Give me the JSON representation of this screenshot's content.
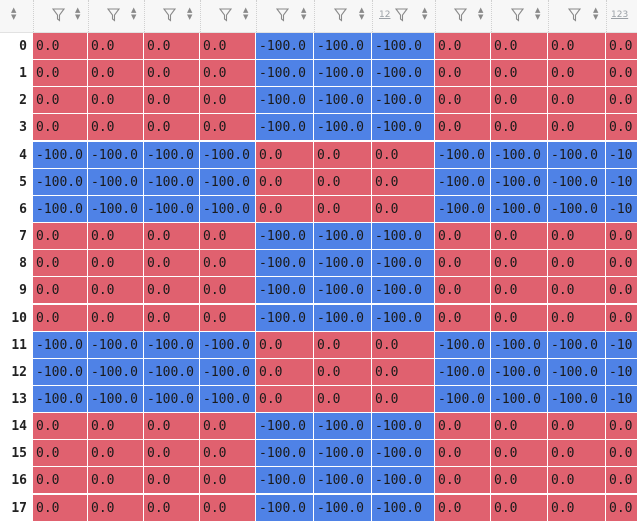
{
  "colors": {
    "positive": "#e0616f",
    "negative": "#4f82e6",
    "header_bg": "#f7f7f7"
  },
  "header": {
    "columns": [
      {
        "type_label": "",
        "filter_icon": "filter-icon",
        "sort_icon": "sort-icon"
      },
      {
        "type_label": "",
        "filter_icon": "filter-icon",
        "sort_icon": "sort-icon"
      },
      {
        "type_label": "",
        "filter_icon": "filter-icon",
        "sort_icon": "sort-icon"
      },
      {
        "type_label": "",
        "filter_icon": "filter-icon",
        "sort_icon": "sort-icon"
      },
      {
        "type_label": "",
        "filter_icon": "filter-icon",
        "sort_icon": "sort-icon"
      },
      {
        "type_label": "",
        "filter_icon": "filter-icon",
        "sort_icon": "sort-icon"
      },
      {
        "type_label": "12",
        "filter_icon": "filter-icon",
        "sort_icon": "sort-icon"
      },
      {
        "type_label": "",
        "filter_icon": "filter-icon",
        "sort_icon": "sort-icon"
      },
      {
        "type_label": "",
        "filter_icon": "filter-icon",
        "sort_icon": "sort-icon"
      },
      {
        "type_label": "",
        "filter_icon": "filter-icon",
        "sort_icon": "sort-icon"
      },
      {
        "type_label": "123",
        "filter_icon": "",
        "sort_icon": ""
      }
    ]
  },
  "table": {
    "row_labels": [
      "0",
      "1",
      "2",
      "3",
      "4",
      "5",
      "6",
      "7",
      "8",
      "9",
      "10",
      "11",
      "12",
      "13",
      "14",
      "15",
      "16",
      "17"
    ],
    "rows": [
      [
        "0.0",
        "0.0",
        "0.0",
        "0.0",
        "-100.0",
        "-100.0",
        "-100.0",
        "0.0",
        "0.0",
        "0.0",
        "0.0"
      ],
      [
        "0.0",
        "0.0",
        "0.0",
        "0.0",
        "-100.0",
        "-100.0",
        "-100.0",
        "0.0",
        "0.0",
        "0.0",
        "0.0"
      ],
      [
        "0.0",
        "0.0",
        "0.0",
        "0.0",
        "-100.0",
        "-100.0",
        "-100.0",
        "0.0",
        "0.0",
        "0.0",
        "0.0"
      ],
      [
        "0.0",
        "0.0",
        "0.0",
        "0.0",
        "-100.0",
        "-100.0",
        "-100.0",
        "0.0",
        "0.0",
        "0.0",
        "0.0"
      ],
      [
        "-100.0",
        "-100.0",
        "-100.0",
        "-100.0",
        "0.0",
        "0.0",
        "0.0",
        "-100.0",
        "-100.0",
        "-100.0",
        "-10"
      ],
      [
        "-100.0",
        "-100.0",
        "-100.0",
        "-100.0",
        "0.0",
        "0.0",
        "0.0",
        "-100.0",
        "-100.0",
        "-100.0",
        "-10"
      ],
      [
        "-100.0",
        "-100.0",
        "-100.0",
        "-100.0",
        "0.0",
        "0.0",
        "0.0",
        "-100.0",
        "-100.0",
        "-100.0",
        "-10"
      ],
      [
        "0.0",
        "0.0",
        "0.0",
        "0.0",
        "-100.0",
        "-100.0",
        "-100.0",
        "0.0",
        "0.0",
        "0.0",
        "0.0"
      ],
      [
        "0.0",
        "0.0",
        "0.0",
        "0.0",
        "-100.0",
        "-100.0",
        "-100.0",
        "0.0",
        "0.0",
        "0.0",
        "0.0"
      ],
      [
        "0.0",
        "0.0",
        "0.0",
        "0.0",
        "-100.0",
        "-100.0",
        "-100.0",
        "0.0",
        "0.0",
        "0.0",
        "0.0"
      ],
      [
        "0.0",
        "0.0",
        "0.0",
        "0.0",
        "-100.0",
        "-100.0",
        "-100.0",
        "0.0",
        "0.0",
        "0.0",
        "0.0"
      ],
      [
        "-100.0",
        "-100.0",
        "-100.0",
        "-100.0",
        "0.0",
        "0.0",
        "0.0",
        "-100.0",
        "-100.0",
        "-100.0",
        "-10"
      ],
      [
        "-100.0",
        "-100.0",
        "-100.0",
        "-100.0",
        "0.0",
        "0.0",
        "0.0",
        "-100.0",
        "-100.0",
        "-100.0",
        "-10"
      ],
      [
        "-100.0",
        "-100.0",
        "-100.0",
        "-100.0",
        "0.0",
        "0.0",
        "0.0",
        "-100.0",
        "-100.0",
        "-100.0",
        "-10"
      ],
      [
        "0.0",
        "0.0",
        "0.0",
        "0.0",
        "-100.0",
        "-100.0",
        "-100.0",
        "0.0",
        "0.0",
        "0.0",
        "0.0"
      ],
      [
        "0.0",
        "0.0",
        "0.0",
        "0.0",
        "-100.0",
        "-100.0",
        "-100.0",
        "0.0",
        "0.0",
        "0.0",
        "0.0"
      ],
      [
        "0.0",
        "0.0",
        "0.0",
        "0.0",
        "-100.0",
        "-100.0",
        "-100.0",
        "0.0",
        "0.0",
        "0.0",
        "0.0"
      ],
      [
        "0.0",
        "0.0",
        "0.0",
        "0.0",
        "-100.0",
        "-100.0",
        "-100.0",
        "0.0",
        "0.0",
        "0.0",
        "0.0"
      ]
    ],
    "partial_row_colors": [
      "negative",
      "negative",
      "negative",
      "negative",
      "positive",
      "positive",
      "positive",
      "negative",
      "negative",
      "negative",
      "negative"
    ]
  }
}
